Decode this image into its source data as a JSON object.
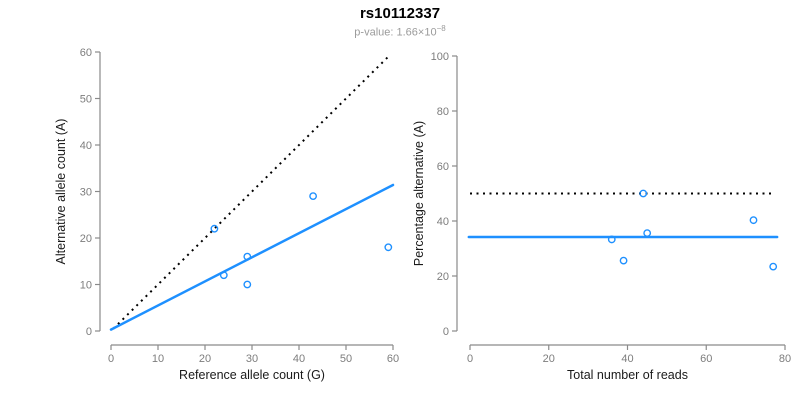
{
  "header": {
    "title": "rs10112337",
    "subtitle_base": "p-value: 1.66×10",
    "subtitle_exponent": "−8"
  },
  "colors": {
    "accent_blue": "#1E90FF",
    "axis_line_gray": "#8a8a8a",
    "tick_text_gray": "#7d7d7d",
    "axis_title_black": "#1a1a1a",
    "identity_line_black": "#000000"
  },
  "chart_data": [
    {
      "type": "scatter",
      "title": "rs10112337",
      "xlabel": "Reference allele count (G)",
      "ylabel": "Alternative allele count (A)",
      "xlim": [
        0,
        60
      ],
      "ylim": [
        0,
        60
      ],
      "xticks": [
        0,
        10,
        20,
        30,
        40,
        50,
        60
      ],
      "yticks": [
        0,
        10,
        20,
        30,
        40,
        50,
        60
      ],
      "grid": false,
      "point_color": "#1E90FF",
      "points": [
        {
          "x": 22,
          "y": 22
        },
        {
          "x": 24,
          "y": 12
        },
        {
          "x": 29,
          "y": 16
        },
        {
          "x": 29,
          "y": 10
        },
        {
          "x": 43,
          "y": 29
        },
        {
          "x": 59,
          "y": 18
        }
      ],
      "lines": [
        {
          "name": "identity-line",
          "style": "dotted",
          "color": "#000000",
          "x1": 0.5,
          "y1": 0.5,
          "x2": 59,
          "y2": 59
        },
        {
          "name": "fit-line",
          "style": "solid",
          "color": "#1E90FF",
          "x1": 0,
          "y1": 0.3,
          "x2": 60,
          "y2": 31.4
        }
      ]
    },
    {
      "type": "scatter",
      "title": "rs10112337",
      "xlabel": "Total number of reads",
      "ylabel": "Percentage alternative (A)",
      "xlim": [
        0,
        80
      ],
      "ylim": [
        0,
        100
      ],
      "xticks": [
        0,
        20,
        40,
        60,
        80
      ],
      "yticks": [
        0,
        20,
        40,
        60,
        80,
        100
      ],
      "grid": false,
      "point_color": "#1E90FF",
      "points": [
        {
          "x": 36,
          "y": 33.3
        },
        {
          "x": 39,
          "y": 25.6
        },
        {
          "x": 44,
          "y": 50.0
        },
        {
          "x": 45,
          "y": 35.6
        },
        {
          "x": 72,
          "y": 40.3
        },
        {
          "x": 77,
          "y": 23.4
        }
      ],
      "lines": [
        {
          "name": "fifty-percent-line",
          "style": "dotted",
          "color": "#000000",
          "x1": 0,
          "y1": 50,
          "x2": 76.5,
          "y2": 50
        },
        {
          "name": "mean-percentage-line",
          "style": "solid",
          "color": "#1E90FF",
          "x1": -0.3,
          "y1": 34.2,
          "x2": 78,
          "y2": 34.2
        }
      ]
    }
  ]
}
